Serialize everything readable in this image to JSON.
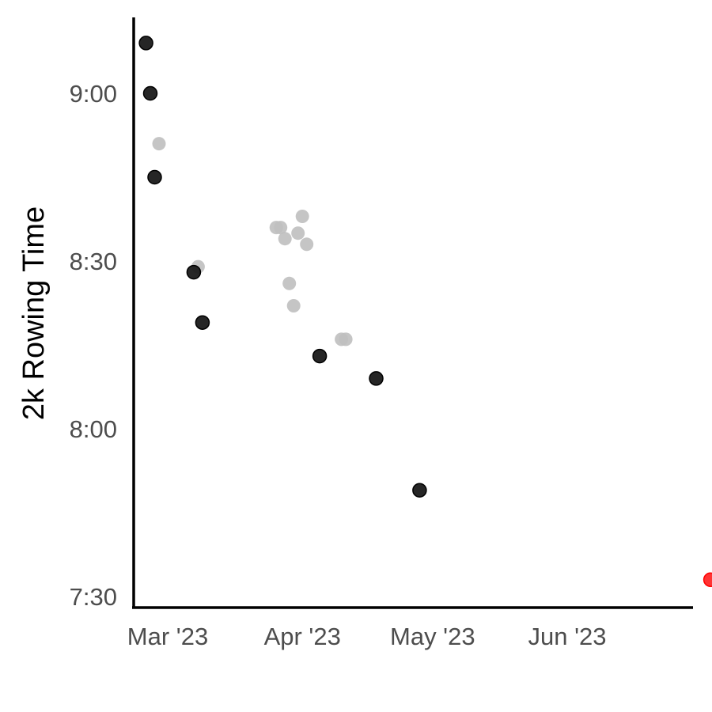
{
  "chart_data": {
    "type": "scatter",
    "title": "",
    "xlabel": "",
    "ylabel": "2k Rowing Time",
    "x_ticks": [
      {
        "date": "2023-03-01",
        "label": "Mar '23"
      },
      {
        "date": "2023-04-01",
        "label": "Apr '23"
      },
      {
        "date": "2023-05-01",
        "label": "May '23"
      },
      {
        "date": "2023-06-01",
        "label": "Jun '23"
      }
    ],
    "y_ticks": [
      {
        "value": "7:30",
        "label": "7:30"
      },
      {
        "value": "8:00",
        "label": "8:00"
      },
      {
        "value": "8:30",
        "label": "8:30"
      },
      {
        "value": "9:00",
        "label": "9:00"
      }
    ],
    "xlim": [
      "2022-02-26",
      "2023-07-24"
    ],
    "xlim_note": "",
    "ylim": [
      "7:28",
      "9:15"
    ],
    "grid": false,
    "legend": "none",
    "colors": {
      "black": "#1a1a1a",
      "gray": "#bfbfbf",
      "red": "#ff0000"
    },
    "series": [
      {
        "color": "black",
        "points": [
          {
            "x": "2023-02-24",
            "y": "9:09"
          },
          {
            "x": "2023-02-25",
            "y": "9:00"
          },
          {
            "x": "2023-02-26",
            "y": "8:45"
          },
          {
            "x": "2023-03-07",
            "y": "8:28"
          },
          {
            "x": "2023-03-09",
            "y": "8:19"
          },
          {
            "x": "2023-04-05",
            "y": "8:13"
          },
          {
            "x": "2023-04-18",
            "y": "8:09"
          },
          {
            "x": "2023-04-28",
            "y": "7:49"
          }
        ]
      },
      {
        "color": "gray",
        "points": [
          {
            "x": "2023-02-27",
            "y": "8:51"
          },
          {
            "x": "2023-03-08",
            "y": "8:29"
          },
          {
            "x": "2023-03-26",
            "y": "8:36"
          },
          {
            "x": "2023-03-27",
            "y": "8:36"
          },
          {
            "x": "2023-03-28",
            "y": "8:34"
          },
          {
            "x": "2023-03-29",
            "y": "8:26"
          },
          {
            "x": "2023-03-30",
            "y": "8:22"
          },
          {
            "x": "2023-03-31",
            "y": "8:35"
          },
          {
            "x": "2023-04-01",
            "y": "8:38"
          },
          {
            "x": "2023-04-02",
            "y": "8:33"
          },
          {
            "x": "2023-04-10",
            "y": "8:16"
          },
          {
            "x": "2023-04-11",
            "y": "8:16"
          }
        ]
      },
      {
        "color": "red",
        "points": [
          {
            "x": "2023-07-04",
            "y": "7:33"
          }
        ]
      }
    ]
  }
}
